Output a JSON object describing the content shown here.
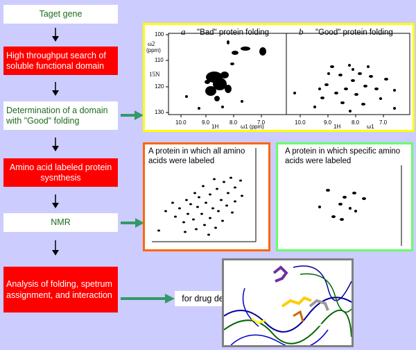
{
  "flow": {
    "step1": "Taget gene",
    "step2": "High throughput search of soluble functional domain",
    "step3": "Determination of a domain with \"Good\" folding",
    "step4": "Amino acid labeled protein sysnthesis",
    "step5": "NMR",
    "step6": "Analysis of folding, spetrum assignment, and interaction"
  },
  "drug_label": "for drug design",
  "spectra_top": {
    "panel_a": {
      "letter": "a",
      "title": "\"Bad\" protein folding"
    },
    "panel_b": {
      "letter": "b",
      "title": "\"Good\" protein folding"
    },
    "axis_w2": "ω2",
    "axis_ppm": "(ppm)",
    "axis_15N": "15N",
    "axis_1H": "1H",
    "axis_w1": "ω1",
    "axis_w1_ppm": "ω1 (ppm)",
    "y_ticks": [
      "100",
      "110",
      "120",
      "130"
    ],
    "x_ticks_a": [
      "10.0",
      "9.0",
      "8.0",
      "7.0"
    ],
    "x_ticks_b": [
      "10.0",
      "9.0",
      "8.0",
      "7.0"
    ]
  },
  "spectra_mid": {
    "all_labeled": "A protein in which all amino acids were labeled",
    "specific_labeled": "A protein in which specific amino acids were labeled"
  },
  "colors": {
    "background": "#ccccff",
    "red_box": "#ff0000",
    "green_text": "#1f6b1f",
    "arrow_green": "#339966",
    "yellow_border": "#ffff00",
    "orange_border": "#ff6600",
    "lightgreen_border": "#66ff66",
    "gray_border": "#808080"
  }
}
